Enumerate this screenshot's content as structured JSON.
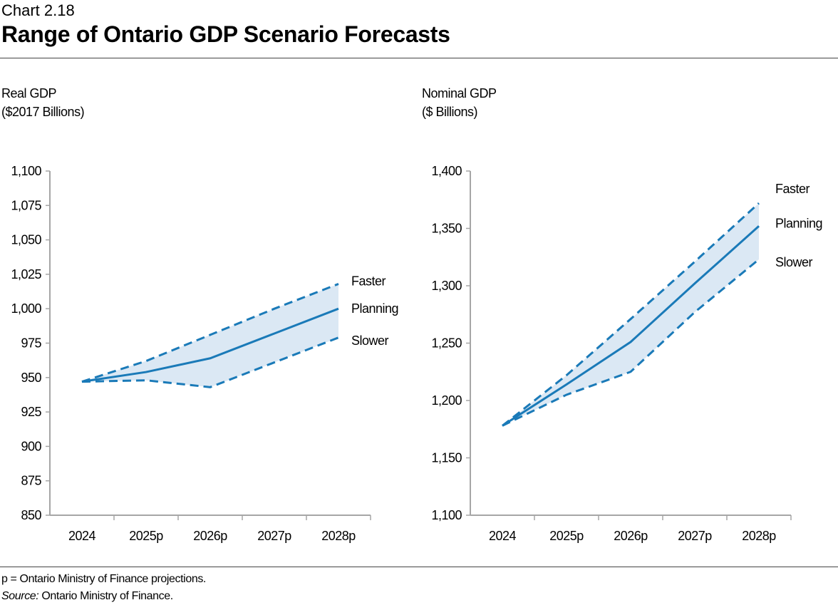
{
  "header": {
    "chart_number": "Chart 2.18",
    "title": "Range of Ontario GDP Scenario Forecasts"
  },
  "footnotes": {
    "note": "p = Ontario Ministry of Finance projections.",
    "source_label": "Source:",
    "source_text": " Ontario Ministry of Finance."
  },
  "colors": {
    "line": "#1a7ab8",
    "band": "#dbe8f4",
    "axis": "#a6a6a6"
  },
  "chart_data": [
    {
      "type": "line",
      "ylabel_line1": "Real GDP",
      "ylabel_line2": "($2017 Billions)",
      "categories": [
        "2024",
        "2025p",
        "2026p",
        "2027p",
        "2028p"
      ],
      "ylim": [
        850,
        1100
      ],
      "yticks": [
        850,
        875,
        900,
        925,
        950,
        975,
        1000,
        1025,
        1050,
        1075,
        1100
      ],
      "ytick_labels": [
        "850",
        "875",
        "900",
        "925",
        "950",
        "975",
        "1,000",
        "1,025",
        "1,050",
        "1,075",
        "1,100"
      ],
      "grid": false,
      "shaded_band": "between Faster and Slower",
      "series": [
        {
          "name": "Faster",
          "style": "dashed",
          "values": [
            947,
            962,
            981,
            1000,
            1018
          ]
        },
        {
          "name": "Planning",
          "style": "solid",
          "values": [
            947,
            954,
            964,
            982,
            1000
          ]
        },
        {
          "name": "Slower",
          "style": "dashed",
          "values": [
            947,
            948,
            943,
            961,
            979
          ]
        }
      ]
    },
    {
      "type": "line",
      "ylabel_line1": "Nominal GDP",
      "ylabel_line2": "($ Billions)",
      "categories": [
        "2024",
        "2025p",
        "2026p",
        "2027p",
        "2028p"
      ],
      "ylim": [
        1100,
        1400
      ],
      "yticks": [
        1100,
        1150,
        1200,
        1250,
        1300,
        1350,
        1400
      ],
      "ytick_labels": [
        "1,100",
        "1,150",
        "1,200",
        "1,250",
        "1,300",
        "1,350",
        "1,400"
      ],
      "grid": false,
      "shaded_band": "between Faster and Slower",
      "series": [
        {
          "name": "Faster",
          "style": "dashed",
          "values": [
            1178,
            1222,
            1271,
            1321,
            1372
          ]
        },
        {
          "name": "Planning",
          "style": "solid",
          "values": [
            1178,
            1214,
            1251,
            1302,
            1352
          ]
        },
        {
          "name": "Slower",
          "style": "dashed",
          "values": [
            1178,
            1205,
            1225,
            1277,
            1323
          ]
        }
      ]
    }
  ]
}
